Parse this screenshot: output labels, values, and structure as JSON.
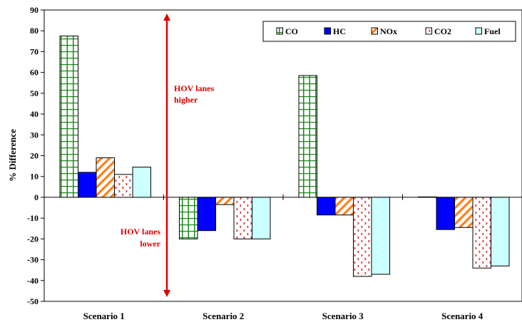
{
  "chart_data": {
    "type": "bar",
    "ylabel": "% Difference",
    "xlabel": "",
    "ylim": [
      -50,
      90
    ],
    "yticks": [
      90,
      80,
      70,
      60,
      50,
      40,
      30,
      20,
      10,
      0,
      -10,
      -20,
      -30,
      -40,
      -50
    ],
    "categories": [
      "Scenario 1",
      "Scenario 2",
      "Scenario 3",
      "Scenario 4"
    ],
    "series": [
      {
        "name": "CO",
        "values": [
          77.5,
          -20,
          58.5,
          0.2
        ]
      },
      {
        "name": "HC",
        "values": [
          12,
          -16,
          -8.5,
          -15.5
        ]
      },
      {
        "name": "NOx",
        "values": [
          19,
          -3.5,
          -8.5,
          -14.5
        ]
      },
      {
        "name": "CO2",
        "values": [
          11,
          -20,
          -38,
          -34
        ]
      },
      {
        "name": "Fuel",
        "values": [
          14.5,
          -20,
          -37,
          -33
        ]
      }
    ],
    "legend_placement": "top-right",
    "annotations": {
      "higher": [
        "HOV lanes",
        "higher"
      ],
      "lower": [
        "HOV lanes",
        "lower"
      ]
    },
    "colors": {
      "CO_fill": "#ffffff",
      "CO_pattern": "#1a8a1a",
      "HC_fill": "#0000ff",
      "NOx_fill": "#ffffff",
      "NOx_pattern": "#ff7f1a",
      "CO2_fill": "#ffffff",
      "CO2_pattern": "#c02020",
      "Fuel_fill": "#ccffff",
      "annotation": "#e00000"
    }
  }
}
